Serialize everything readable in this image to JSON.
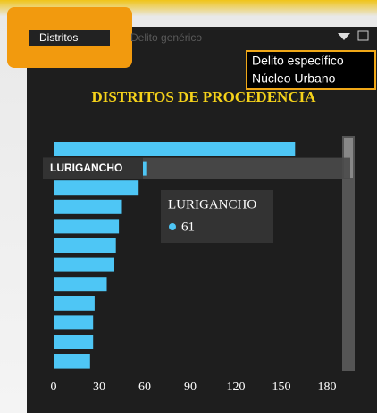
{
  "ui": {
    "tab_active": "Distritos",
    "tab_inactive": "Delito genérico",
    "popup_lines": [
      "Delito específico",
      "Núcleo Urbano"
    ]
  },
  "chart_data": {
    "type": "bar",
    "orientation": "horizontal",
    "title": "DISTRITOS DE PROCEDENCIA",
    "categories": [
      null,
      "LURIGANCHO",
      null,
      null,
      null,
      null,
      null,
      null,
      null,
      null,
      null,
      null
    ],
    "values": [
      159,
      61,
      56,
      45,
      43,
      41,
      40,
      35,
      27,
      26,
      26,
      24
    ],
    "color": "#4ec6f5",
    "xlim": [
      0,
      180
    ],
    "xticks": [
      0,
      30,
      60,
      90,
      120,
      150,
      180
    ],
    "highlight": 1
  }
}
